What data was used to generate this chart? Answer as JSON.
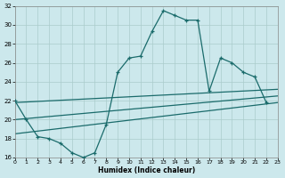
{
  "xlabel": "Humidex (Indice chaleur)",
  "xlim": [
    0,
    23
  ],
  "ylim": [
    16,
    32
  ],
  "xticks": [
    0,
    1,
    2,
    3,
    4,
    5,
    6,
    7,
    8,
    9,
    10,
    11,
    12,
    13,
    14,
    15,
    16,
    17,
    18,
    19,
    20,
    21,
    22,
    23
  ],
  "yticks": [
    16,
    18,
    20,
    22,
    24,
    26,
    28,
    30,
    32
  ],
  "background_color": "#cce8ec",
  "grid_color": "#aacccc",
  "line_color": "#1a6b6b",
  "main_x": [
    0,
    1,
    2,
    3,
    4,
    5,
    6,
    7,
    8,
    9,
    10,
    11,
    12,
    13,
    14,
    15,
    16,
    17,
    18,
    19,
    20,
    21,
    22
  ],
  "main_y": [
    22,
    20,
    18.2,
    18,
    17.5,
    16.5,
    16,
    16.5,
    19.5,
    25,
    26.5,
    26.7,
    29.3,
    31.5,
    31,
    30.5,
    30.5,
    23,
    26.5,
    26,
    25,
    24.5,
    21.8
  ],
  "line1_x": [
    0,
    23
  ],
  "line1_y": [
    18.5,
    21.8
  ],
  "line2_x": [
    0,
    23
  ],
  "line2_y": [
    20.0,
    22.5
  ],
  "line3_x": [
    0,
    23
  ],
  "line3_y": [
    21.8,
    23.2
  ]
}
